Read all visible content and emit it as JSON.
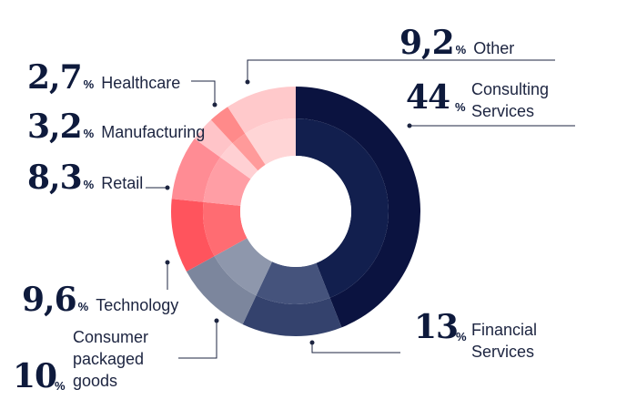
{
  "chart_data": {
    "type": "pie",
    "subtype": "donut",
    "unit": "%",
    "slices": [
      {
        "label": "Consulting Services",
        "value_text": "44",
        "value": 44.0,
        "color": "#0b1340",
        "inner_color": "#121f4e"
      },
      {
        "label": "Financial Services",
        "value_text": "13",
        "value": 13.0,
        "color": "#34426d",
        "inner_color": "#45537c"
      },
      {
        "label": "Consumer packaged goods",
        "value_text": "10",
        "value": 10.0,
        "color": "#7c869d",
        "inner_color": "#8e97ac"
      },
      {
        "label": "Technology",
        "value_text": "9,6",
        "value": 9.6,
        "color": "#ff545d",
        "inner_color": "#ff6c72"
      },
      {
        "label": "Retail",
        "value_text": "8,3",
        "value": 8.3,
        "color": "#ff8c94",
        "inner_color": "#ff9ea5"
      },
      {
        "label": "Manufacturing",
        "value_text": "3,2",
        "value": 3.2,
        "color": "#ffc4c8",
        "inner_color": "#ffd0d3"
      },
      {
        "label": "Healthcare",
        "value_text": "2,7",
        "value": 2.7,
        "color": "#ff8a8a",
        "inner_color": "#ff9a9a"
      },
      {
        "label": "Other",
        "value_text": "9,2",
        "value": 9.2,
        "color": "#ffc9cb",
        "inner_color": "#ffd5d6"
      }
    ]
  },
  "labels": {
    "other": {
      "value": "9,2",
      "pct": "%",
      "name": "Other"
    },
    "consulting": {
      "value": "44",
      "pct": "%",
      "name1": "Consulting",
      "name2": "Services"
    },
    "healthcare": {
      "value": "2,7",
      "pct": "%",
      "name": "Healthcare"
    },
    "manufacturing": {
      "value": "3,2",
      "pct": "%",
      "name": "Manufacturing"
    },
    "retail": {
      "value": "8,3",
      "pct": "%",
      "name": "Retail"
    },
    "technology": {
      "value": "9,6",
      "pct": "%",
      "name": "Technology"
    },
    "cpg": {
      "value": "10",
      "pct": "%",
      "name1": "Consumer",
      "name2": "packaged",
      "name3": "goods"
    },
    "financial": {
      "value": "13",
      "pct": "%",
      "name1": "Financial",
      "name2": "Services"
    }
  }
}
